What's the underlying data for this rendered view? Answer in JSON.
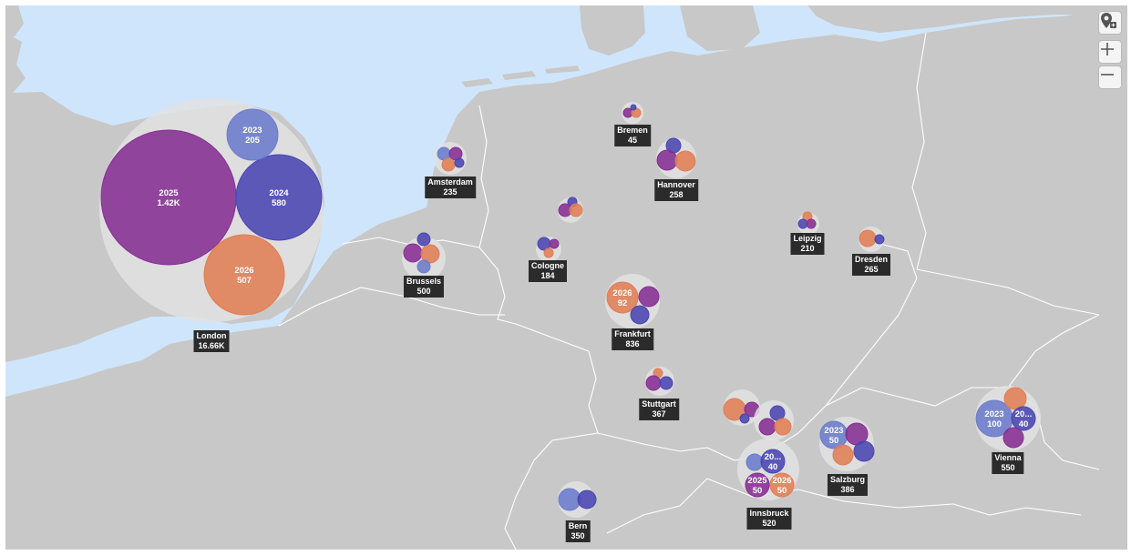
{
  "colors": {
    "water": "#cfe5fb",
    "land": "#c8c8c8",
    "border": "#ffffff",
    "halo": "#e2e2e2",
    "y2023": "#6b7ccc",
    "y2024": "#4a45b2",
    "y2025": "#862f93",
    "y2026": "#e07e55"
  },
  "controls": {
    "pin_icon": "map-pin-icon",
    "zoom_in_icon": "plus-icon",
    "zoom_out_icon": "minus-icon"
  },
  "cities": [
    {
      "name": "London",
      "total": "16.66K",
      "bubbles": [
        {
          "year": "2025",
          "value": "1.42K",
          "labeled": true
        },
        {
          "year": "2024",
          "value": "580",
          "labeled": true
        },
        {
          "year": "2023",
          "value": "205",
          "labeled": true
        },
        {
          "year": "2026",
          "value": "507",
          "labeled": true
        }
      ]
    },
    {
      "name": "Amsterdam",
      "total": "235",
      "bubbles": [
        {
          "year": "2023",
          "labeled": false
        },
        {
          "year": "2025",
          "labeled": false
        },
        {
          "year": "2026",
          "labeled": false
        },
        {
          "year": "2024",
          "labeled": false
        }
      ]
    },
    {
      "name": "Bremen",
      "total": "45",
      "bubbles": [
        {
          "year": "2025",
          "labeled": false
        },
        {
          "year": "2026",
          "labeled": false
        },
        {
          "year": "2024",
          "labeled": false
        }
      ]
    },
    {
      "name": "Hannover",
      "total": "258",
      "bubbles": [
        {
          "year": "2024",
          "labeled": false
        },
        {
          "year": "2025",
          "labeled": false
        },
        {
          "year": "2026",
          "labeled": false
        }
      ]
    },
    {
      "name": "Brussels",
      "total": "500",
      "bubbles": [
        {
          "year": "2024",
          "labeled": false
        },
        {
          "year": "2025",
          "labeled": false
        },
        {
          "year": "2026",
          "labeled": false
        },
        {
          "year": "2023",
          "labeled": false
        }
      ]
    },
    {
      "name": "Cologne",
      "total": "184",
      "bubbles": [
        {
          "year": "2024",
          "labeled": false
        },
        {
          "year": "2025",
          "labeled": false
        },
        {
          "year": "2026",
          "labeled": false
        }
      ]
    },
    {
      "name": "Frankfurt",
      "total": "836",
      "bubbles": [
        {
          "year": "2026",
          "value": "92",
          "labeled": true
        },
        {
          "year": "2025",
          "labeled": false
        },
        {
          "year": "2024",
          "labeled": false
        }
      ]
    },
    {
      "name": "Stuttgart",
      "total": "367",
      "bubbles": [
        {
          "year": "2026",
          "labeled": false
        },
        {
          "year": "2025",
          "labeled": false
        },
        {
          "year": "2024",
          "labeled": false
        }
      ]
    },
    {
      "name": "Leipzig",
      "total": "210",
      "bubbles": [
        {
          "year": "2026",
          "labeled": false
        },
        {
          "year": "2024",
          "labeled": false
        },
        {
          "year": "2025",
          "labeled": false
        }
      ]
    },
    {
      "name": "Dresden",
      "total": "265",
      "bubbles": [
        {
          "year": "2026",
          "labeled": false
        },
        {
          "year": "2024",
          "labeled": false
        }
      ]
    },
    {
      "name": "Bern",
      "total": "350",
      "bubbles": [
        {
          "year": "2023",
          "labeled": false
        },
        {
          "year": "2024",
          "labeled": false
        }
      ]
    },
    {
      "name": "Innsbruck",
      "total": "520",
      "bubbles": [
        {
          "year": "2023",
          "labeled": false
        },
        {
          "year": "2024",
          "value": "40",
          "display_year": "20...",
          "labeled": true
        },
        {
          "year": "2025",
          "value": "50",
          "labeled": true
        },
        {
          "year": "2026",
          "value": "50",
          "labeled": true
        }
      ]
    },
    {
      "name": "Salzburg",
      "total": "386",
      "bubbles": [
        {
          "year": "2023",
          "value": "50",
          "labeled": true
        },
        {
          "year": "2025",
          "labeled": false
        },
        {
          "year": "2024",
          "labeled": false
        },
        {
          "year": "2026",
          "labeled": false
        }
      ]
    },
    {
      "name": "Vienna",
      "total": "550",
      "bubbles": [
        {
          "year": "2023",
          "value": "100",
          "labeled": true
        },
        {
          "year": "2026",
          "labeled": false
        },
        {
          "year": "2024",
          "value": "40",
          "display_year": "20...",
          "labeled": true
        },
        {
          "year": "2025",
          "labeled": false
        }
      ]
    }
  ],
  "unlabeled_groups": [
    {
      "id": "cluster-near-cologne",
      "bubbles": [
        {
          "year": "2024",
          "labeled": false
        },
        {
          "year": "2025",
          "labeled": false
        },
        {
          "year": "2026",
          "labeled": false
        }
      ]
    },
    {
      "id": "cluster-munich-west",
      "bubbles": [
        {
          "year": "2026",
          "labeled": false
        },
        {
          "year": "2025",
          "labeled": false
        },
        {
          "year": "2024",
          "labeled": false
        }
      ]
    },
    {
      "id": "cluster-munich-east",
      "bubbles": [
        {
          "year": "2024",
          "labeled": false
        },
        {
          "year": "2025",
          "labeled": false
        },
        {
          "year": "2026",
          "labeled": false
        }
      ]
    }
  ]
}
